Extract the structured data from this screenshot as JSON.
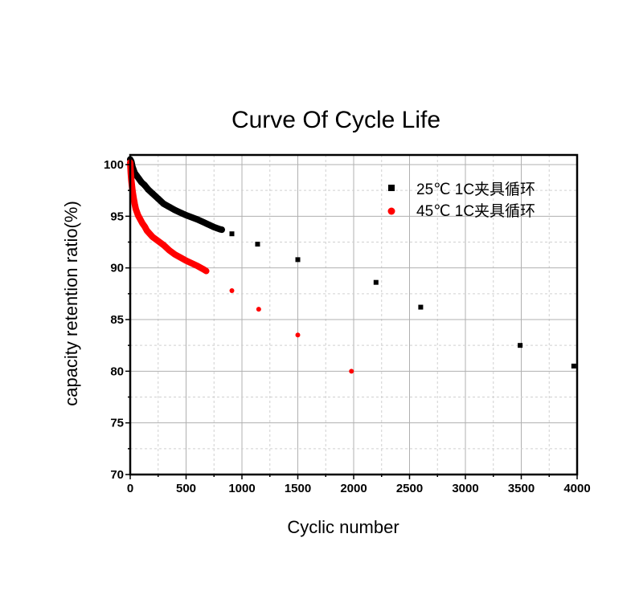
{
  "chart_data": {
    "type": "scatter",
    "title": "Curve Of Cycle Life",
    "xlabel": "Cyclic number",
    "ylabel": "capacity retention ratio(%)",
    "xlim": [
      0,
      4000
    ],
    "ylim": [
      70,
      100.8
    ],
    "xticks": [
      "0",
      "500",
      "1000",
      "1500",
      "2000",
      "2500",
      "3000",
      "3500",
      "4000"
    ],
    "yticks": [
      "70",
      "75",
      "80",
      "85",
      "90",
      "95",
      "100"
    ],
    "grid": true,
    "legend_position": "top-right",
    "series": [
      {
        "name": "25℃ 1C夹具循环",
        "color": "#000000",
        "marker": "square",
        "x": [
          0,
          10,
          20,
          40,
          60,
          80,
          100,
          130,
          160,
          200,
          250,
          300,
          350,
          400,
          450,
          500,
          550,
          600,
          650,
          700,
          750,
          800,
          820,
          910,
          1140,
          1500,
          2200,
          2600,
          3490,
          3970
        ],
        "y": [
          100.5,
          100.3,
          99.8,
          99.2,
          98.9,
          98.6,
          98.3,
          98.0,
          97.6,
          97.2,
          96.7,
          96.2,
          95.9,
          95.6,
          95.35,
          95.1,
          94.9,
          94.7,
          94.45,
          94.2,
          93.95,
          93.75,
          93.7,
          93.3,
          92.3,
          90.8,
          88.6,
          86.2,
          82.5,
          80.5
        ]
      },
      {
        "name": "45℃ 1C夹具循环",
        "color": "#ff0000",
        "marker": "circle",
        "x": [
          0,
          5,
          10,
          20,
          30,
          40,
          50,
          70,
          90,
          110,
          130,
          150,
          175,
          200,
          250,
          300,
          350,
          400,
          450,
          500,
          550,
          600,
          650,
          680,
          910,
          1150,
          1500,
          1980
        ],
        "y": [
          100.2,
          99.2,
          98.5,
          97.5,
          96.8,
          96.2,
          95.7,
          95.1,
          94.7,
          94.3,
          94.0,
          93.6,
          93.3,
          93.0,
          92.6,
          92.2,
          91.7,
          91.3,
          91.0,
          90.7,
          90.45,
          90.2,
          89.9,
          89.7,
          87.8,
          86.0,
          83.5,
          80.0
        ]
      }
    ]
  }
}
